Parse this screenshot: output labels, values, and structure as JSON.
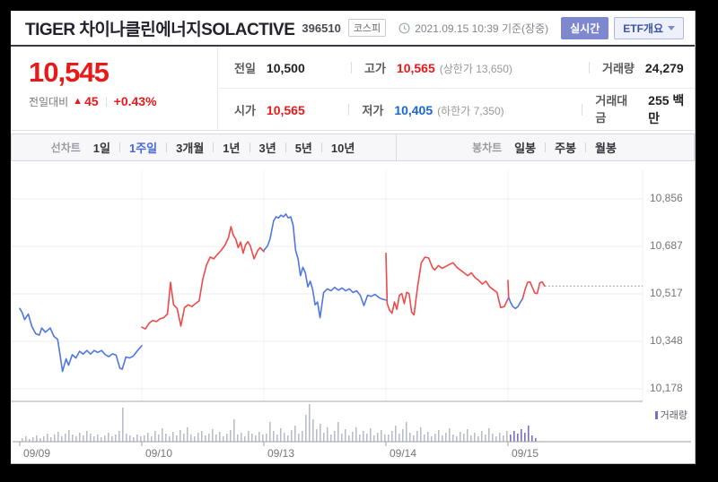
{
  "header": {
    "title": "TIGER 차이나클린에너지SOLACTIVE",
    "code": "396510",
    "market_badge": "코스피",
    "timestamp": "2021.09.15 10:39 기준(장중)",
    "realtime_button": "실시간",
    "etf_button": "ETF개요"
  },
  "price": {
    "current": "10,545",
    "change_label": "전일대비",
    "change_arrow": "▲",
    "change_value": "45",
    "change_percent": "+0.43%"
  },
  "summary": {
    "rows": [
      {
        "cells": [
          {
            "label": "전일",
            "value": "10,500",
            "tone": "dark"
          },
          {
            "label": "고가",
            "value": "10,565",
            "tone": "red",
            "extra": "(상한가 13,650)"
          },
          {
            "label": "거래량",
            "value": "24,279",
            "tone": "dark"
          }
        ]
      },
      {
        "cells": [
          {
            "label": "시가",
            "value": "10,565",
            "tone": "red"
          },
          {
            "label": "저가",
            "value": "10,405",
            "tone": "blue",
            "extra": "(하한가 7,350)"
          },
          {
            "label": "거래대금",
            "value": "255 백만",
            "tone": "dark"
          }
        ]
      }
    ]
  },
  "toolbar": {
    "left_label": "선차트",
    "left_items": [
      {
        "label": "1일",
        "active": false
      },
      {
        "label": "1주일",
        "active": true
      },
      {
        "label": "3개월",
        "active": false
      },
      {
        "label": "1년",
        "active": false
      },
      {
        "label": "3년",
        "active": false
      },
      {
        "label": "5년",
        "active": false
      },
      {
        "label": "10년",
        "active": false
      }
    ],
    "right_label": "봉차트",
    "right_items": [
      {
        "label": "일봉",
        "active": false
      },
      {
        "label": "주봉",
        "active": false
      },
      {
        "label": "월봉",
        "active": false
      }
    ]
  },
  "chart_data": {
    "type": "line",
    "period": "1주일",
    "legend": "거래량",
    "y_ticks": [
      "10,856",
      "10,687",
      "10,517",
      "10,348",
      "10,178"
    ],
    "y_values": [
      10856,
      10687,
      10517,
      10348,
      10178
    ],
    "ylim": [
      10178,
      10856
    ],
    "x_labels": [
      "09/09",
      "09/10",
      "09/13",
      "09/14",
      "09/15"
    ],
    "last_price": 10545,
    "colors": {
      "up": "#ee4a4a",
      "down": "#5077e0",
      "volume": "#b9bdc9",
      "volume_today": "#7d6ec2",
      "grid": "#ececf1"
    },
    "segments": [
      {
        "color": "down",
        "points": [
          [
            0,
            10465
          ],
          [
            0.004,
            10450
          ],
          [
            0.008,
            10425
          ],
          [
            0.014,
            10445
          ],
          [
            0.02,
            10400
          ],
          [
            0.026,
            10375
          ],
          [
            0.032,
            10370
          ],
          [
            0.036,
            10395
          ],
          [
            0.042,
            10380
          ],
          [
            0.05,
            10395
          ],
          [
            0.056,
            10365
          ],
          [
            0.062,
            10355
          ],
          [
            0.066,
            10300
          ],
          [
            0.07,
            10240
          ],
          [
            0.076,
            10285
          ],
          [
            0.08,
            10262
          ],
          [
            0.086,
            10300
          ],
          [
            0.092,
            10288
          ],
          [
            0.098,
            10312
          ],
          [
            0.104,
            10302
          ],
          [
            0.11,
            10315
          ],
          [
            0.116,
            10302
          ],
          [
            0.122,
            10315
          ],
          [
            0.128,
            10308
          ],
          [
            0.134,
            10315
          ],
          [
            0.14,
            10300
          ],
          [
            0.146,
            10293
          ],
          [
            0.152,
            10303
          ],
          [
            0.158,
            10298
          ],
          [
            0.164,
            10252
          ],
          [
            0.168,
            10248
          ],
          [
            0.174,
            10292
          ],
          [
            0.18,
            10288
          ],
          [
            0.186,
            10295
          ],
          [
            0.192,
            10312
          ],
          [
            0.2,
            10332
          ]
        ]
      },
      {
        "color": "up",
        "points": [
          [
            0.2,
            10398
          ],
          [
            0.206,
            10392
          ],
          [
            0.212,
            10412
          ],
          [
            0.218,
            10422
          ],
          [
            0.224,
            10418
          ],
          [
            0.23,
            10428
          ],
          [
            0.236,
            10432
          ],
          [
            0.242,
            10445
          ],
          [
            0.247,
            10558
          ],
          [
            0.252,
            10478
          ],
          [
            0.258,
            10465
          ],
          [
            0.264,
            10402
          ],
          [
            0.27,
            10468
          ],
          [
            0.276,
            10478
          ],
          [
            0.282,
            10472
          ],
          [
            0.288,
            10482
          ],
          [
            0.294,
            10492
          ],
          [
            0.3,
            10570
          ],
          [
            0.306,
            10620
          ],
          [
            0.312,
            10648
          ],
          [
            0.318,
            10642
          ],
          [
            0.324,
            10658
          ],
          [
            0.33,
            10672
          ],
          [
            0.336,
            10690
          ],
          [
            0.342,
            10718
          ],
          [
            0.346,
            10757
          ],
          [
            0.35,
            10726
          ],
          [
            0.354,
            10712
          ],
          [
            0.358,
            10682
          ],
          [
            0.362,
            10702
          ],
          [
            0.366,
            10662
          ],
          [
            0.37,
            10692
          ],
          [
            0.374,
            10703
          ],
          [
            0.378,
            10687
          ],
          [
            0.384,
            10642
          ],
          [
            0.39,
            10672
          ],
          [
            0.394,
            10682
          ],
          [
            0.4,
            10668
          ]
        ]
      },
      {
        "color": "down",
        "points": [
          [
            0.4,
            10672
          ],
          [
            0.406,
            10688
          ],
          [
            0.41,
            10712
          ],
          [
            0.416,
            10778
          ],
          [
            0.42,
            10792
          ],
          [
            0.424,
            10788
          ],
          [
            0.428,
            10798
          ],
          [
            0.432,
            10792
          ],
          [
            0.436,
            10802
          ],
          [
            0.44,
            10788
          ],
          [
            0.444,
            10792
          ],
          [
            0.448,
            10762
          ],
          [
            0.452,
            10672
          ],
          [
            0.456,
            10642
          ],
          [
            0.46,
            10582
          ],
          [
            0.464,
            10612
          ],
          [
            0.468,
            10592
          ],
          [
            0.472,
            10542
          ],
          [
            0.476,
            10562
          ],
          [
            0.48,
            10532
          ],
          [
            0.484,
            10478
          ],
          [
            0.488,
            10488
          ],
          [
            0.492,
            10432
          ],
          [
            0.498,
            10522
          ],
          [
            0.504,
            10535
          ],
          [
            0.51,
            10528
          ],
          [
            0.516,
            10540
          ],
          [
            0.522,
            10530
          ],
          [
            0.528,
            10538
          ],
          [
            0.534,
            10528
          ],
          [
            0.54,
            10535
          ],
          [
            0.546,
            10522
          ],
          [
            0.552,
            10528
          ],
          [
            0.558,
            10512
          ],
          [
            0.564,
            10475
          ],
          [
            0.57,
            10512
          ],
          [
            0.576,
            10508
          ],
          [
            0.582,
            10515
          ],
          [
            0.588,
            10505
          ],
          [
            0.594,
            10498
          ],
          [
            0.6,
            10495
          ]
        ]
      },
      {
        "color": "up",
        "points": [
          [
            0.6,
            10662
          ],
          [
            0.602,
            10482
          ],
          [
            0.606,
            10458
          ],
          [
            0.61,
            10448
          ],
          [
            0.614,
            10488
          ],
          [
            0.618,
            10462
          ],
          [
            0.622,
            10512
          ],
          [
            0.626,
            10518
          ],
          [
            0.63,
            10482
          ],
          [
            0.634,
            10522
          ],
          [
            0.638,
            10518
          ],
          [
            0.642,
            10452
          ],
          [
            0.646,
            10442
          ],
          [
            0.652,
            10545
          ],
          [
            0.658,
            10628
          ],
          [
            0.664,
            10648
          ],
          [
            0.67,
            10645
          ],
          [
            0.676,
            10612
          ],
          [
            0.68,
            10602
          ],
          [
            0.686,
            10618
          ],
          [
            0.692,
            10608
          ],
          [
            0.698,
            10615
          ],
          [
            0.704,
            10622
          ],
          [
            0.71,
            10628
          ],
          [
            0.716,
            10612
          ],
          [
            0.722,
            10602
          ],
          [
            0.728,
            10592
          ],
          [
            0.734,
            10582
          ],
          [
            0.74,
            10592
          ],
          [
            0.746,
            10575
          ],
          [
            0.752,
            10565
          ],
          [
            0.758,
            10552
          ],
          [
            0.764,
            10562
          ],
          [
            0.77,
            10542
          ],
          [
            0.776,
            10532
          ],
          [
            0.782,
            10522
          ],
          [
            0.788,
            10468
          ],
          [
            0.794,
            10472
          ],
          [
            0.8,
            10500
          ]
        ]
      },
      {
        "color": "up",
        "points": [
          [
            0.8,
            10565
          ],
          [
            0.801,
            10505
          ]
        ]
      },
      {
        "color": "down",
        "points": [
          [
            0.801,
            10505
          ],
          [
            0.804,
            10488
          ],
          [
            0.808,
            10472
          ],
          [
            0.812,
            10465
          ],
          [
            0.816,
            10471
          ],
          [
            0.82,
            10486
          ],
          [
            0.824,
            10500
          ]
        ]
      },
      {
        "color": "up",
        "points": [
          [
            0.824,
            10500
          ],
          [
            0.828,
            10532
          ],
          [
            0.832,
            10558
          ],
          [
            0.836,
            10560
          ],
          [
            0.84,
            10540
          ],
          [
            0.844,
            10520
          ],
          [
            0.848,
            10518
          ],
          [
            0.852,
            10556
          ],
          [
            0.856,
            10560
          ],
          [
            0.86,
            10545
          ]
        ]
      }
    ],
    "volume": [
      4,
      6,
      3,
      5,
      7,
      4,
      6,
      9,
      5,
      8,
      11,
      6,
      9,
      13,
      8,
      6,
      10,
      7,
      12,
      9,
      6,
      8,
      5,
      7,
      10,
      6,
      8,
      12,
      38,
      9,
      7,
      5,
      8,
      6,
      7,
      10,
      6,
      12,
      8,
      15,
      9,
      6,
      11,
      7,
      13,
      9,
      16,
      8,
      6,
      10,
      12,
      7,
      9,
      14,
      8,
      11,
      6,
      9,
      13,
      25,
      8,
      10,
      6,
      12,
      9,
      7,
      11,
      8,
      9,
      22,
      12,
      8,
      15,
      10,
      7,
      13,
      18,
      9,
      12,
      30,
      42,
      25,
      14,
      20,
      10,
      16,
      8,
      12,
      22,
      9,
      14,
      7,
      11,
      16,
      8,
      12,
      9,
      15,
      7,
      10,
      13,
      8,
      8,
      12,
      18,
      9,
      14,
      22,
      10,
      7,
      12,
      16,
      8,
      11,
      6,
      9,
      13,
      7,
      10,
      15,
      8,
      6,
      11,
      9,
      14,
      7,
      10,
      6,
      12,
      8,
      15,
      9,
      6,
      10,
      7,
      12,
      8,
      12,
      9,
      14,
      10,
      18,
      7,
      4
    ],
    "volume_today_from": 136
  }
}
